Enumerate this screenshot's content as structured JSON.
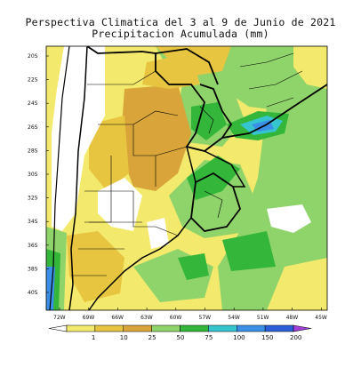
{
  "title_line1": "Perspectiva Climatica del 3 al 9 de Junio de 2021",
  "title_line2": "Precipitacion Acumulada (mm)",
  "lat_labels": [
    "20S",
    "22S",
    "24S",
    "26S",
    "28S",
    "30S",
    "32S",
    "34S",
    "36S",
    "38S",
    "40S"
  ],
  "lon_labels": [
    "72W",
    "69W",
    "66W",
    "63W",
    "60W",
    "57W",
    "54W",
    "51W",
    "48W",
    "45W"
  ],
  "colorbar": {
    "ticks": [
      "1",
      "10",
      "25",
      "50",
      "75",
      "100",
      "150",
      "200"
    ],
    "colors": [
      "#ffffff",
      "#f3e96c",
      "#e7c540",
      "#d9a53a",
      "#8ed46a",
      "#34b63a",
      "#36c4cf",
      "#3a8fe6",
      "#2a5fd8",
      "#a040d8"
    ]
  }
}
